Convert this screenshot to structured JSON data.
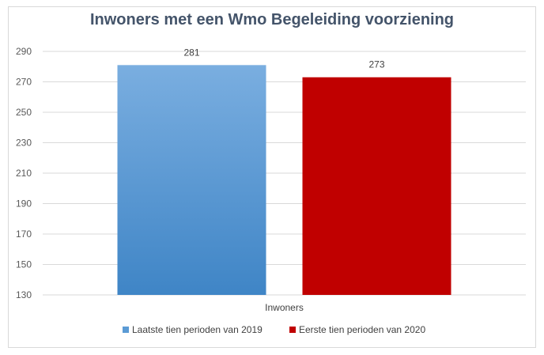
{
  "chart_data": {
    "type": "bar",
    "title": "Inwoners met een Wmo Begeleiding voorziening",
    "categories": [
      "Inwoners"
    ],
    "series": [
      {
        "name": "Laatste tien perioden van 2019",
        "values": [
          281
        ],
        "color": "#5b9bd5"
      },
      {
        "name": "Eerste tien perioden van 2020",
        "values": [
          273
        ],
        "color": "#c00000"
      }
    ],
    "ylim": [
      130,
      290
    ],
    "yticks": [
      130,
      150,
      170,
      190,
      210,
      230,
      250,
      270,
      290
    ],
    "grid": true,
    "legend": "bottom",
    "xlabel": "",
    "ylabel": ""
  }
}
